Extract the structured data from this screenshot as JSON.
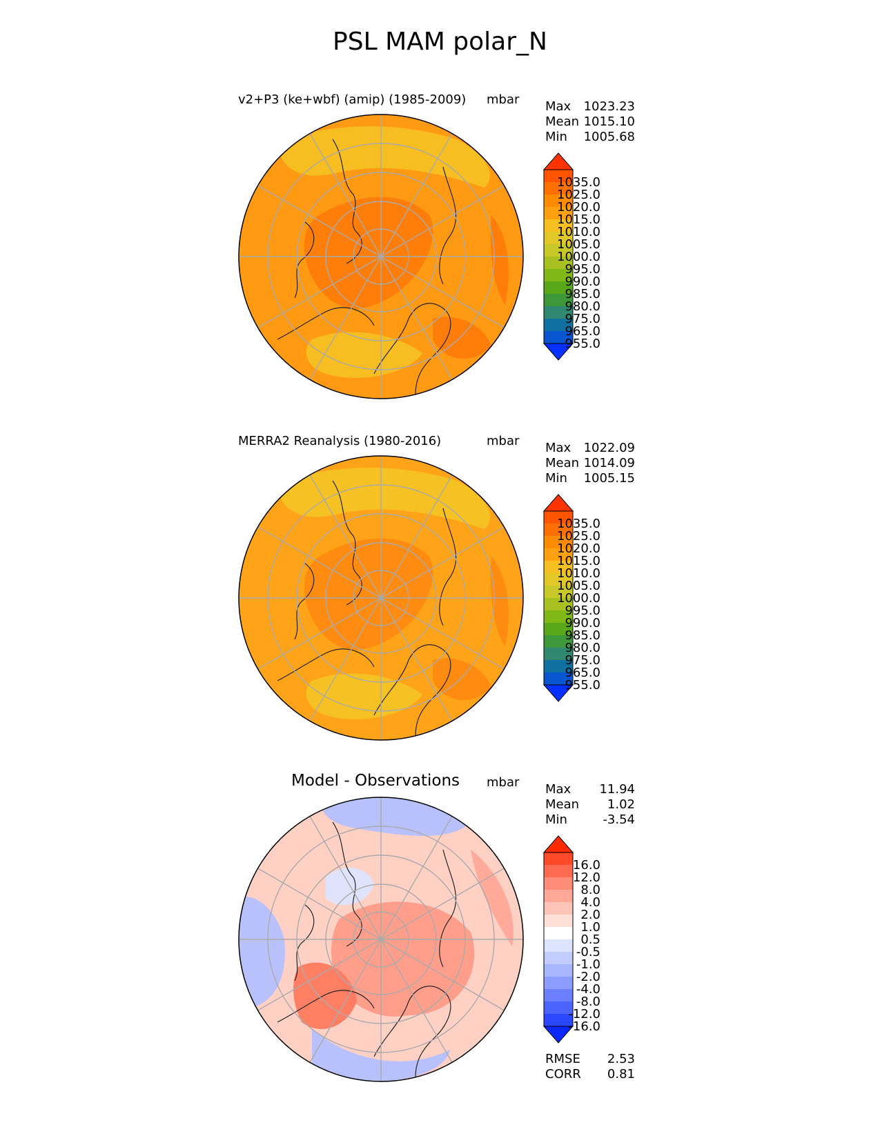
{
  "figure": {
    "title": "PSL MAM polar_N"
  },
  "panels": [
    {
      "title": "v2+P3 (ke+wbf) (amip) (1985-2009)",
      "units": "mbar",
      "stats": [
        {
          "label": "Max",
          "value": "1023.23"
        },
        {
          "label": "Mean",
          "value": "1015.10"
        },
        {
          "label": "Min",
          "value": "1005.68"
        }
      ],
      "colorbar": {
        "labels": [
          "1035.0",
          "1025.0",
          "1020.0",
          "1015.0",
          "1010.0",
          "1005.0",
          "1000.0",
          "995.0",
          "990.0",
          "985.0",
          "980.0",
          "975.0",
          "965.0",
          "955.0"
        ],
        "colors": [
          "#ff3300",
          "#ff5500",
          "#ff7000",
          "#ff8c00",
          "#ffa010",
          "#f5c020",
          "#e0c828",
          "#c8c828",
          "#a8c020",
          "#80b818",
          "#58a818",
          "#3c9838",
          "#308870",
          "#1070a0",
          "#0a55d0",
          "#0530ff"
        ]
      },
      "field_colors": {
        "base": "#ff9a12",
        "high": "#ff7b0a",
        "low": "#f5c022"
      }
    },
    {
      "title": "MERRA2 Reanalysis (1980-2016)",
      "units": "mbar",
      "stats": [
        {
          "label": "Max",
          "value": "1022.09"
        },
        {
          "label": "Mean",
          "value": "1014.09"
        },
        {
          "label": "Min",
          "value": "1005.15"
        }
      ],
      "colorbar": {
        "labels": [
          "1035.0",
          "1025.0",
          "1020.0",
          "1015.0",
          "1010.0",
          "1005.0",
          "1000.0",
          "995.0",
          "990.0",
          "985.0",
          "980.0",
          "975.0",
          "965.0",
          "955.0"
        ],
        "colors": [
          "#ff3300",
          "#ff5500",
          "#ff7000",
          "#ff8c00",
          "#ffa010",
          "#f5c020",
          "#e0c828",
          "#c8c828",
          "#a8c020",
          "#80b818",
          "#58a818",
          "#3c9838",
          "#308870",
          "#1070a0",
          "#0a55d0",
          "#0530ff"
        ]
      },
      "field_colors": {
        "base": "#ffa418",
        "high": "#ff8a10",
        "low": "#f5c424"
      }
    },
    {
      "title": "Model - Observations",
      "units": "mbar",
      "stats": [
        {
          "label": "Max",
          "value": "11.94"
        },
        {
          "label": "Mean",
          "value": "1.02"
        },
        {
          "label": "Min",
          "value": "-3.54"
        }
      ],
      "colorbar": {
        "labels": [
          "16.0",
          "12.0",
          "8.0",
          "4.0",
          "2.0",
          "1.0",
          "0.5",
          "-0.5",
          "-1.0",
          "-2.0",
          "-4.0",
          "-8.0",
          "-12.0",
          "-16.0"
        ],
        "colors": [
          "#ff2a00",
          "#ff4a2a",
          "#ff6a50",
          "#ff8c78",
          "#ffa898",
          "#ffc4b8",
          "#ffe0d8",
          "#ffffff",
          "#dde4ff",
          "#c2ccff",
          "#a8b6ff",
          "#8c9cff",
          "#6c80ff",
          "#4c64ff",
          "#2c48ff",
          "#0a28ff"
        ]
      },
      "field_colors": {
        "base": "#ffd0c4",
        "high": "#ff7a60",
        "low": "#b4c0ff"
      },
      "footer": [
        {
          "label": "RMSE",
          "value": "2.53"
        },
        {
          "label": "CORR",
          "value": "0.81"
        }
      ]
    }
  ]
}
